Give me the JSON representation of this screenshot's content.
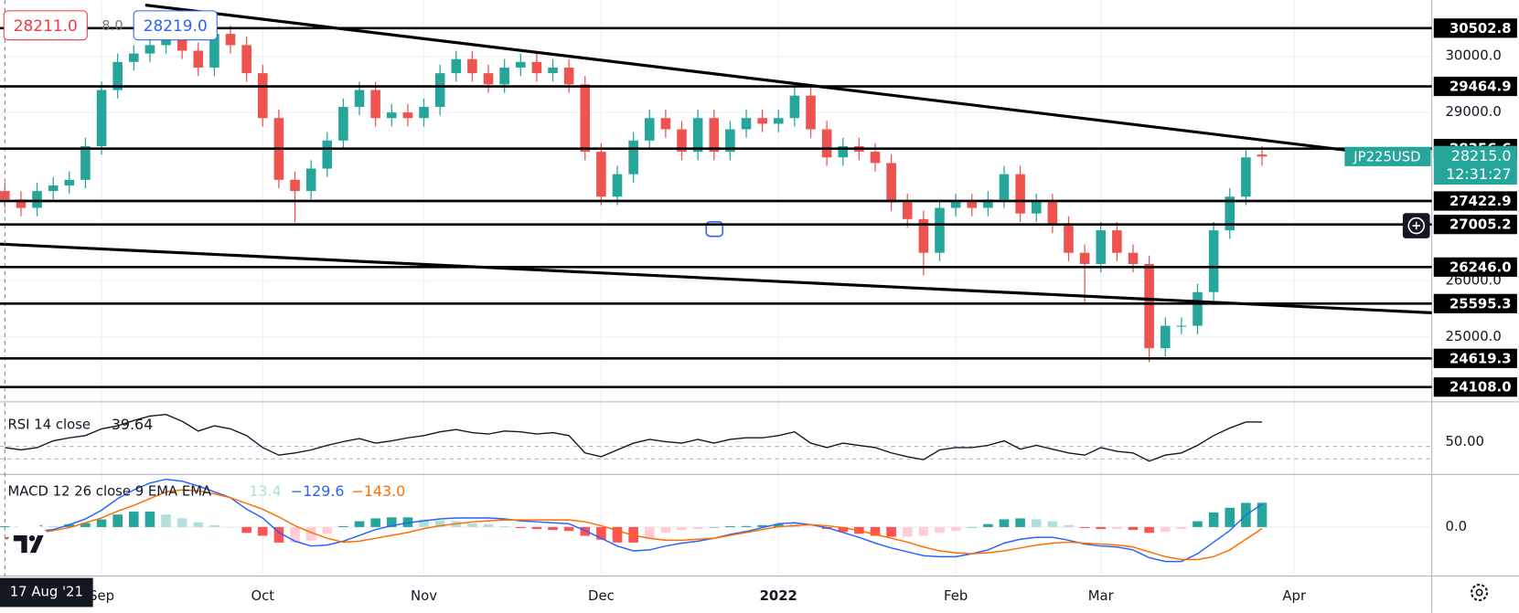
{
  "toolbar": {
    "sell": "28211.0",
    "spread": "8.0",
    "buy": "28219.0"
  },
  "crosshair_date": "17 Aug '21",
  "chart_data": [
    {
      "type": "candlestick",
      "categories": [
        null,
        null,
        null,
        null,
        null,
        null,
        "Sep",
        null,
        null,
        null,
        null,
        null,
        null,
        null,
        null,
        null,
        "Oct",
        null,
        null,
        null,
        null,
        null,
        null,
        null,
        null,
        null,
        "Nov",
        null,
        null,
        null,
        null,
        null,
        null,
        null,
        null,
        null,
        null,
        "Dec",
        null,
        null,
        null,
        null,
        null,
        null,
        null,
        null,
        null,
        null,
        "2022",
        null,
        null,
        null,
        null,
        null,
        null,
        null,
        null,
        null,
        null,
        "Feb",
        null,
        null,
        null,
        null,
        null,
        null,
        null,
        null,
        "Mar",
        null,
        null,
        null,
        null,
        null,
        null,
        null,
        null,
        null,
        null,
        null,
        "Apr"
      ],
      "open": [
        27600,
        27450,
        27300,
        27600,
        27700,
        27800,
        28400,
        29400,
        29900,
        30050,
        30200,
        30300,
        30100,
        29800,
        30400,
        30200,
        29700,
        28900,
        27800,
        27600,
        28000,
        28500,
        29100,
        29400,
        28900,
        29000,
        28900,
        29100,
        29700,
        29950,
        29700,
        29500,
        29800,
        29900,
        29700,
        29800,
        29500,
        28300,
        27500,
        27900,
        28500,
        28900,
        28700,
        28300,
        28900,
        28300,
        28700,
        28900,
        28800,
        28900,
        29300,
        28700,
        28200,
        28400,
        28300,
        28100,
        27400,
        27100,
        26500,
        27300,
        27400,
        27300,
        27450,
        27900,
        27200,
        27400,
        27000,
        26500,
        26300,
        26900,
        26500,
        26300,
        24800,
        25200,
        25200,
        25800,
        26900,
        27500,
        28250,
        null,
        null
      ],
      "high": [
        27750,
        27600,
        27750,
        27850,
        27950,
        28550,
        29550,
        30050,
        30200,
        30350,
        30450,
        30450,
        30250,
        30550,
        30550,
        30350,
        29850,
        29050,
        27950,
        28150,
        28650,
        29250,
        29550,
        29550,
        29150,
        29150,
        29250,
        29850,
        30100,
        30100,
        29850,
        29950,
        30050,
        30050,
        29950,
        29950,
        29650,
        28450,
        28050,
        28650,
        29050,
        29050,
        28850,
        29050,
        29050,
        28850,
        29050,
        29050,
        29050,
        29450,
        29450,
        28850,
        28550,
        28550,
        28450,
        28250,
        27550,
        27250,
        27450,
        27550,
        27550,
        27600,
        28050,
        28050,
        27550,
        27550,
        27150,
        26650,
        27050,
        27050,
        26650,
        26450,
        25350,
        25350,
        25950,
        27050,
        27650,
        28350,
        28400,
        null,
        null
      ],
      "low": [
        27300,
        27150,
        27150,
        27450,
        27550,
        27650,
        28250,
        29250,
        29750,
        29900,
        30050,
        29950,
        29650,
        29650,
        30050,
        29550,
        28750,
        27650,
        27050,
        27450,
        27850,
        28350,
        28950,
        28750,
        28750,
        28750,
        28750,
        28950,
        29550,
        29550,
        29350,
        29350,
        29650,
        29550,
        29550,
        29350,
        28150,
        27350,
        27350,
        27750,
        28350,
        28550,
        28150,
        28150,
        28150,
        28150,
        28550,
        28650,
        28650,
        28750,
        28550,
        28050,
        28050,
        28150,
        27950,
        27250,
        26950,
        26100,
        26350,
        27150,
        27150,
        27150,
        27300,
        27050,
        27050,
        26850,
        26350,
        25600,
        26150,
        26350,
        26150,
        24550,
        24650,
        25050,
        25050,
        25650,
        26750,
        27350,
        28050,
        null,
        null
      ],
      "close": [
        27450,
        27300,
        27600,
        27700,
        27800,
        28400,
        29400,
        29900,
        30050,
        30200,
        30300,
        30100,
        29800,
        30400,
        30200,
        29700,
        28900,
        27800,
        27600,
        28000,
        28500,
        29100,
        29400,
        28900,
        29000,
        28900,
        29100,
        29700,
        29950,
        29700,
        29500,
        29800,
        29900,
        29700,
        29800,
        29500,
        28300,
        27500,
        27900,
        28500,
        28900,
        28700,
        28300,
        28900,
        28300,
        28700,
        28900,
        28800,
        28900,
        29300,
        28700,
        28200,
        28400,
        28300,
        28100,
        27400,
        27100,
        26500,
        27300,
        27400,
        27300,
        27450,
        27900,
        27200,
        27400,
        27000,
        26500,
        26300,
        26900,
        26500,
        26300,
        24800,
        25200,
        25200,
        25800,
        26900,
        27500,
        28200,
        28215,
        null,
        null
      ],
      "up_color": "#26a69a",
      "down_color": "#ef5350",
      "ylim": [
        23845,
        31000
      ],
      "yticks": [
        {
          "value": 25000,
          "label": "25000.0"
        },
        {
          "value": 26000,
          "label": "26000.0"
        },
        {
          "value": 29000,
          "label": "29000.0"
        },
        {
          "value": 30000,
          "label": "30000.0"
        }
      ],
      "levels": [
        30502.8,
        29464.9,
        28356.6,
        27422.9,
        27005.2,
        {
          "value": 26246,
          "label": "26246.0"
        },
        25595.3,
        24619.3,
        {
          "value": 24108,
          "label": "24108.0"
        }
      ],
      "level_color": "#000000",
      "last_price": {
        "symbol": "JP225USD",
        "value": 28215,
        "label": "28215.0",
        "countdown": "12:31:27",
        "color": "#26a69a"
      },
      "grid": true
    },
    {
      "type": "line",
      "title": "RSI 14 close",
      "legend_value": 39.64,
      "series": [
        {
          "color": "#131722",
          "values": [
            43,
            40,
            43,
            52,
            56,
            59,
            68,
            72,
            79,
            85,
            87,
            78,
            65,
            72,
            68,
            59,
            43,
            33,
            36,
            40,
            46,
            51,
            55,
            49,
            52,
            56,
            59,
            64,
            67,
            63,
            61,
            65,
            64,
            61,
            63,
            59,
            36,
            31,
            40,
            49,
            54,
            51,
            49,
            54,
            49,
            54,
            56,
            56,
            59,
            64,
            49,
            43,
            49,
            46,
            43,
            36,
            31,
            27,
            40,
            43,
            43,
            46,
            52,
            41,
            46,
            41,
            36,
            33,
            43,
            38,
            36,
            25,
            33,
            36,
            46,
            59,
            69,
            77,
            77,
            null,
            null
          ]
        }
      ],
      "ylim": [
        10,
        100
      ],
      "yticks": [
        {
          "value": 50,
          "label": "50.00"
        }
      ]
    },
    {
      "type": "macd",
      "title": "MACD 12 26 close 9 EMA EMA",
      "histogram": {
        "legend_value": 13.4,
        "colors": [
          "#26a69a",
          "#b2dfdb",
          "#ffcdd2",
          "#ff5252"
        ],
        "values": [
          9,
          10,
          21,
          11,
          31,
          42,
          83,
          136,
          167,
          168,
          137,
          95,
          52,
          21,
          0,
          -63,
          -94,
          -168,
          -168,
          -146,
          -74,
          10,
          63,
          94,
          105,
          105,
          84,
          73,
          63,
          42,
          32,
          10,
          -11,
          -21,
          -32,
          -42,
          -95,
          -136,
          -167,
          -168,
          -126,
          -63,
          -32,
          -21,
          0,
          10,
          11,
          21,
          32,
          31,
          0,
          -21,
          -53,
          -73,
          -94,
          -105,
          -105,
          -94,
          -63,
          -42,
          0,
          32,
          84,
          94,
          84,
          63,
          21,
          -10,
          -21,
          -21,
          -31,
          -63,
          -52,
          -21,
          63,
          158,
          209,
          262,
          263,
          null,
          null
        ]
      },
      "series": [
        {
          "color": "#2962ff",
          "legend_value": {
            "value": -129.6,
            "label": "−129.6"
          },
          "values": [
            -121,
            -90,
            -48,
            -27,
            25,
            88,
            182,
            308,
            402,
            476,
            518,
            497,
            444,
            381,
            318,
            193,
            99,
            -59,
            -153,
            -205,
            -195,
            -153,
            -90,
            -27,
            15,
            46,
            67,
            88,
            99,
            99,
            99,
            88,
            67,
            57,
            46,
            36,
            -38,
            -121,
            -205,
            -258,
            -247,
            -205,
            -174,
            -153,
            -121,
            -80,
            -48,
            -6,
            36,
            46,
            25,
            -6,
            -59,
            -111,
            -174,
            -226,
            -268,
            -310,
            -321,
            -321,
            -289,
            -247,
            -174,
            -132,
            -111,
            -111,
            -142,
            -184,
            -205,
            -216,
            -247,
            -331,
            -373,
            -373,
            -289,
            -163,
            -38,
            130,
            246,
            null,
            null
          ]
        },
        {
          "color": "#ff6d00",
          "legend_value": {
            "value": -143.0,
            "label": "−143.0"
          },
          "values": [
            -130,
            -100,
            -69,
            -38,
            -6,
            46,
            99,
            172,
            235,
            308,
            381,
            402,
            392,
            360,
            318,
            256,
            193,
            109,
            15,
            -59,
            -121,
            -163,
            -153,
            -121,
            -90,
            -59,
            -17,
            15,
            36,
            57,
            67,
            78,
            78,
            78,
            78,
            78,
            57,
            15,
            -38,
            -90,
            -121,
            -142,
            -142,
            -132,
            -121,
            -90,
            -59,
            -27,
            4,
            15,
            25,
            15,
            -6,
            -38,
            -80,
            -121,
            -163,
            -216,
            -258,
            -279,
            -289,
            -279,
            -258,
            -226,
            -195,
            -174,
            -163,
            -174,
            -184,
            -195,
            -216,
            -268,
            -321,
            -352,
            -352,
            -321,
            -247,
            -132,
            -17,
            null,
            null
          ]
        }
      ],
      "ylim": [
        -530,
        570
      ],
      "yticks": [
        {
          "value": 0,
          "label": "0.0"
        }
      ]
    }
  ]
}
